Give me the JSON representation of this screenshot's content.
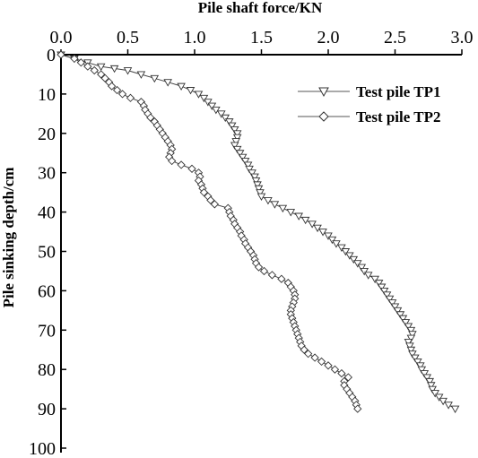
{
  "chart_data": {
    "type": "line",
    "xlabel": "Pile shaft force/KN",
    "ylabel": "Pile sinking depth/cm",
    "x_axis_position": "top",
    "y_axis_inverted": true,
    "xlim": [
      0.0,
      3.0
    ],
    "ylim": [
      0,
      100
    ],
    "x_ticks": [
      "0.0",
      "0.5",
      "1.0",
      "1.5",
      "2.0",
      "2.5",
      "3.0"
    ],
    "y_ticks": [
      "0",
      "10",
      "20",
      "30",
      "40",
      "50",
      "60",
      "70",
      "80",
      "90",
      "100"
    ],
    "legend_position": "top-right",
    "series": [
      {
        "name": "Test pile TP1",
        "marker": "triangle-down",
        "points": [
          [
            0.0,
            0
          ],
          [
            0.1,
            1
          ],
          [
            0.2,
            2
          ],
          [
            0.3,
            3
          ],
          [
            0.4,
            3.5
          ],
          [
            0.5,
            4
          ],
          [
            0.6,
            5
          ],
          [
            0.7,
            6
          ],
          [
            0.8,
            7
          ],
          [
            0.9,
            8
          ],
          [
            0.97,
            9
          ],
          [
            1.03,
            10
          ],
          [
            1.07,
            11
          ],
          [
            1.1,
            12
          ],
          [
            1.13,
            13
          ],
          [
            1.16,
            14
          ],
          [
            1.2,
            15
          ],
          [
            1.23,
            16
          ],
          [
            1.26,
            17
          ],
          [
            1.28,
            18
          ],
          [
            1.3,
            19
          ],
          [
            1.32,
            20
          ],
          [
            1.32,
            21
          ],
          [
            1.31,
            22
          ],
          [
            1.3,
            23
          ],
          [
            1.32,
            24
          ],
          [
            1.34,
            25
          ],
          [
            1.36,
            26
          ],
          [
            1.38,
            27
          ],
          [
            1.4,
            28
          ],
          [
            1.41,
            29
          ],
          [
            1.43,
            30
          ],
          [
            1.45,
            31
          ],
          [
            1.46,
            32
          ],
          [
            1.47,
            33
          ],
          [
            1.48,
            34
          ],
          [
            1.49,
            35
          ],
          [
            1.5,
            36
          ],
          [
            1.55,
            37
          ],
          [
            1.6,
            38
          ],
          [
            1.66,
            39
          ],
          [
            1.72,
            40
          ],
          [
            1.78,
            41
          ],
          [
            1.83,
            42
          ],
          [
            1.88,
            43
          ],
          [
            1.92,
            44
          ],
          [
            1.96,
            45
          ],
          [
            2.0,
            46
          ],
          [
            2.03,
            47
          ],
          [
            2.06,
            48
          ],
          [
            2.1,
            49
          ],
          [
            2.13,
            50
          ],
          [
            2.16,
            51
          ],
          [
            2.19,
            52
          ],
          [
            2.22,
            53
          ],
          [
            2.25,
            54
          ],
          [
            2.27,
            55
          ],
          [
            2.3,
            56
          ],
          [
            2.35,
            57
          ],
          [
            2.38,
            58
          ],
          [
            2.4,
            59
          ],
          [
            2.42,
            60
          ],
          [
            2.44,
            61
          ],
          [
            2.46,
            62
          ],
          [
            2.48,
            63
          ],
          [
            2.5,
            64
          ],
          [
            2.52,
            65
          ],
          [
            2.54,
            66
          ],
          [
            2.56,
            67
          ],
          [
            2.58,
            68
          ],
          [
            2.6,
            69
          ],
          [
            2.62,
            70
          ],
          [
            2.63,
            71
          ],
          [
            2.62,
            72
          ],
          [
            2.6,
            73
          ],
          [
            2.61,
            74
          ],
          [
            2.62,
            75
          ],
          [
            2.63,
            76
          ],
          [
            2.65,
            77
          ],
          [
            2.67,
            78
          ],
          [
            2.69,
            79
          ],
          [
            2.7,
            80
          ],
          [
            2.72,
            81
          ],
          [
            2.74,
            82
          ],
          [
            2.76,
            83
          ],
          [
            2.77,
            84
          ],
          [
            2.78,
            85
          ],
          [
            2.8,
            86
          ],
          [
            2.83,
            87
          ],
          [
            2.86,
            88
          ],
          [
            2.9,
            89
          ],
          [
            2.95,
            90
          ]
        ]
      },
      {
        "name": "Test pile TP2",
        "marker": "diamond",
        "points": [
          [
            0.0,
            0
          ],
          [
            0.1,
            1
          ],
          [
            0.15,
            2
          ],
          [
            0.2,
            3
          ],
          [
            0.25,
            4
          ],
          [
            0.3,
            5
          ],
          [
            0.33,
            6
          ],
          [
            0.36,
            7
          ],
          [
            0.38,
            8
          ],
          [
            0.42,
            9
          ],
          [
            0.46,
            10
          ],
          [
            0.52,
            11
          ],
          [
            0.6,
            12
          ],
          [
            0.62,
            13
          ],
          [
            0.63,
            14
          ],
          [
            0.65,
            15
          ],
          [
            0.67,
            16
          ],
          [
            0.7,
            17
          ],
          [
            0.72,
            18
          ],
          [
            0.74,
            19
          ],
          [
            0.76,
            20
          ],
          [
            0.78,
            21
          ],
          [
            0.8,
            22
          ],
          [
            0.82,
            23
          ],
          [
            0.83,
            24
          ],
          [
            0.82,
            25
          ],
          [
            0.81,
            26
          ],
          [
            0.83,
            27
          ],
          [
            0.9,
            28
          ],
          [
            0.98,
            29
          ],
          [
            1.03,
            30
          ],
          [
            1.04,
            31
          ],
          [
            1.03,
            32
          ],
          [
            1.05,
            33
          ],
          [
            1.06,
            34
          ],
          [
            1.07,
            35
          ],
          [
            1.1,
            36
          ],
          [
            1.12,
            37
          ],
          [
            1.15,
            38
          ],
          [
            1.25,
            39
          ],
          [
            1.26,
            40
          ],
          [
            1.27,
            41
          ],
          [
            1.29,
            42
          ],
          [
            1.3,
            43
          ],
          [
            1.32,
            44
          ],
          [
            1.34,
            45
          ],
          [
            1.35,
            46
          ],
          [
            1.37,
            47
          ],
          [
            1.38,
            48
          ],
          [
            1.4,
            49
          ],
          [
            1.42,
            50
          ],
          [
            1.44,
            51
          ],
          [
            1.45,
            52
          ],
          [
            1.46,
            53
          ],
          [
            1.48,
            54
          ],
          [
            1.52,
            55
          ],
          [
            1.58,
            56
          ],
          [
            1.65,
            57
          ],
          [
            1.7,
            58
          ],
          [
            1.72,
            59
          ],
          [
            1.74,
            60
          ],
          [
            1.75,
            61
          ],
          [
            1.75,
            62
          ],
          [
            1.74,
            63
          ],
          [
            1.73,
            64
          ],
          [
            1.72,
            65
          ],
          [
            1.72,
            66
          ],
          [
            1.73,
            67
          ],
          [
            1.74,
            68
          ],
          [
            1.75,
            69
          ],
          [
            1.76,
            70
          ],
          [
            1.77,
            71
          ],
          [
            1.78,
            72
          ],
          [
            1.79,
            73
          ],
          [
            1.8,
            74
          ],
          [
            1.82,
            75
          ],
          [
            1.85,
            76
          ],
          [
            1.9,
            77
          ],
          [
            1.95,
            78
          ],
          [
            2.0,
            79
          ],
          [
            2.05,
            80
          ],
          [
            2.1,
            81
          ],
          [
            2.15,
            82
          ],
          [
            2.12,
            83
          ],
          [
            2.12,
            84
          ],
          [
            2.14,
            85
          ],
          [
            2.16,
            86
          ],
          [
            2.18,
            87
          ],
          [
            2.2,
            88
          ],
          [
            2.21,
            89
          ],
          [
            2.22,
            90
          ]
        ]
      }
    ]
  }
}
